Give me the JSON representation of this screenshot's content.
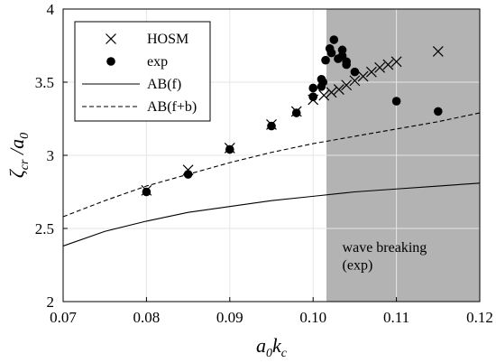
{
  "chart_data": {
    "type": "scatter",
    "xlabel_main": "a",
    "xlabel_sub1": "0",
    "xlabel_main2": "k",
    "xlabel_sub2": "c",
    "ylabel_main": "ζ",
    "ylabel_sub1": "cr",
    "ylabel_mid": " /a",
    "ylabel_sub2": "0",
    "xlim": [
      0.07,
      0.12
    ],
    "ylim": [
      2,
      4
    ],
    "xticks": [
      0.07,
      0.08,
      0.09,
      0.1,
      0.11,
      0.12
    ],
    "xtick_labels": [
      "0.07",
      "0.08",
      "0.09",
      "0.10",
      "0.11",
      "0.12"
    ],
    "yticks": [
      2,
      2.5,
      3,
      3.5,
      4
    ],
    "ytick_labels": [
      "2",
      "2.5",
      "3",
      "3.5",
      "4"
    ],
    "grid": true,
    "legend_position": "top-left",
    "shaded_region": {
      "x_start": 0.1016,
      "x_end": 0.12,
      "color": "#b3b3b3"
    },
    "annotation_line1": "wave breaking",
    "annotation_line2": "(exp)",
    "series": [
      {
        "name": "HOSM",
        "marker": "x",
        "x": [
          0.08,
          0.085,
          0.09,
          0.095,
          0.098,
          0.1,
          0.1013,
          0.1022,
          0.1031,
          0.104,
          0.105,
          0.106,
          0.107,
          0.108,
          0.109,
          0.11,
          0.115
        ],
        "y": [
          2.76,
          2.9,
          3.05,
          3.21,
          3.3,
          3.38,
          3.41,
          3.43,
          3.45,
          3.48,
          3.51,
          3.54,
          3.57,
          3.6,
          3.62,
          3.64,
          3.71
        ]
      },
      {
        "name": "exp",
        "marker": "dot",
        "x": [
          0.08,
          0.085,
          0.09,
          0.095,
          0.098,
          0.1,
          0.1,
          0.101,
          0.101,
          0.1012,
          0.1015,
          0.102,
          0.1022,
          0.1025,
          0.103,
          0.1035,
          0.1035,
          0.104,
          0.104,
          0.105,
          0.11,
          0.115
        ],
        "y": [
          2.75,
          2.87,
          3.04,
          3.2,
          3.29,
          3.4,
          3.46,
          3.47,
          3.52,
          3.5,
          3.65,
          3.73,
          3.7,
          3.79,
          3.66,
          3.72,
          3.68,
          3.64,
          3.62,
          3.57,
          3.37,
          3.3
        ]
      },
      {
        "name": "AB(f)",
        "line": "solid",
        "x": [
          0.07,
          0.075,
          0.08,
          0.085,
          0.09,
          0.095,
          0.1,
          0.105,
          0.11,
          0.115,
          0.12
        ],
        "y": [
          2.38,
          2.48,
          2.55,
          2.61,
          2.65,
          2.69,
          2.72,
          2.75,
          2.77,
          2.79,
          2.81
        ]
      },
      {
        "name": "AB(f+b)",
        "line": "dashed",
        "x": [
          0.07,
          0.075,
          0.08,
          0.085,
          0.09,
          0.095,
          0.1,
          0.105,
          0.11,
          0.115,
          0.12
        ],
        "y": [
          2.58,
          2.69,
          2.79,
          2.87,
          2.95,
          3.02,
          3.08,
          3.13,
          3.18,
          3.23,
          3.29
        ]
      }
    ]
  }
}
